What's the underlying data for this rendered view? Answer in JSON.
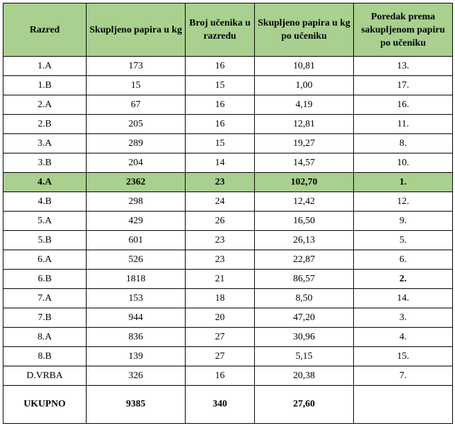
{
  "headers": [
    "Razred",
    "Skupljeno papira u kg",
    "Broj učenika u razredu",
    "Skupljeno papira u kg po učeniku",
    "Poredak prema sakupljenom papiru po učeniku"
  ],
  "rows": [
    {
      "razred": "1.A",
      "kg": "173",
      "ucenici": "16",
      "po_uceniku": "10,81",
      "poredak": "13."
    },
    {
      "razred": "1.B",
      "kg": "15",
      "ucenici": "15",
      "po_uceniku": "1,00",
      "poredak": "17."
    },
    {
      "razred": "2.A",
      "kg": "67",
      "ucenici": "16",
      "po_uceniku": "4,19",
      "poredak": "16."
    },
    {
      "razred": "2.B",
      "kg": "205",
      "ucenici": "16",
      "po_uceniku": "12,81",
      "poredak": "11."
    },
    {
      "razred": "3.A",
      "kg": "289",
      "ucenici": "15",
      "po_uceniku": "19,27",
      "poredak": "8."
    },
    {
      "razred": "3.B",
      "kg": "204",
      "ucenici": "14",
      "po_uceniku": "14,57",
      "poredak": "10."
    },
    {
      "razred": "4.A",
      "kg": "2362",
      "ucenici": "23",
      "po_uceniku": "102,70",
      "poredak": "1."
    },
    {
      "razred": "4.B",
      "kg": "298",
      "ucenici": "24",
      "po_uceniku": "12,42",
      "poredak": "12."
    },
    {
      "razred": "5.A",
      "kg": "429",
      "ucenici": "26",
      "po_uceniku": "16,50",
      "poredak": "9."
    },
    {
      "razred": "5.B",
      "kg": "601",
      "ucenici": "23",
      "po_uceniku": "26,13",
      "poredak": "5."
    },
    {
      "razred": "6.A",
      "kg": "526",
      "ucenici": "23",
      "po_uceniku": "22,87",
      "poredak": "6."
    },
    {
      "razred": "6.B",
      "kg": "1818",
      "ucenici": "21",
      "po_uceniku": "86,57",
      "poredak": "2."
    },
    {
      "razred": "7.A",
      "kg": "153",
      "ucenici": "18",
      "po_uceniku": "8,50",
      "poredak": "14."
    },
    {
      "razred": "7.B",
      "kg": "944",
      "ucenici": "20",
      "po_uceniku": "47,20",
      "poredak": "3."
    },
    {
      "razred": "8.A",
      "kg": "836",
      "ucenici": "27",
      "po_uceniku": "30,96",
      "poredak": "4."
    },
    {
      "razred": "8.B",
      "kg": "139",
      "ucenici": "27",
      "po_uceniku": "5,15",
      "poredak": "15."
    },
    {
      "razred": "D.VRBA",
      "kg": "326",
      "ucenici": "16",
      "po_uceniku": "20,38",
      "poredak": "7."
    }
  ],
  "total": {
    "razred": "UKUPNO",
    "kg": "9385",
    "ucenici": "340",
    "po_uceniku": "27,60",
    "poredak": ""
  },
  "colors": {
    "header_bg": "#a9d08e",
    "highlight_bg": "#a9d08e"
  }
}
